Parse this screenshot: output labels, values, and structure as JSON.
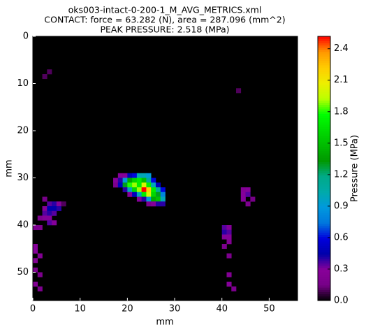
{
  "chart_data": {
    "type": "heatmap",
    "title": "oks003-intact-0-200-1_M_AVG_METRICS.xml",
    "subtitle": "CONTACT: force = 63.282 (N), area = 287.096 (mm^2)",
    "annotation": "PEAK PRESSURE: 2.518 (MPa)",
    "x_label": "mm",
    "y_label": "mm",
    "xlim": [
      0,
      56
    ],
    "ylim": [
      0,
      56
    ],
    "invert_y": true,
    "xticks": [
      0,
      10,
      20,
      30,
      40,
      50
    ],
    "yticks": [
      0,
      10,
      20,
      30,
      40,
      50
    ],
    "colormap": "nipy_spectral",
    "background": "#000000",
    "colorbar_label": "Pressure (MPa)",
    "clim": [
      0,
      2.518
    ],
    "colorbar_ticks": [
      {
        "value": 0,
        "label": "0.0"
      },
      {
        "value": 0.3,
        "label": "0.3"
      },
      {
        "value": 0.6,
        "label": "0.6"
      },
      {
        "value": 0.9,
        "label": "0.9"
      },
      {
        "value": 1.2,
        "label": "1.2"
      },
      {
        "value": 1.5,
        "label": "1.5"
      },
      {
        "value": 1.8,
        "label": "1.8"
      },
      {
        "value": 2.1,
        "label": "2.1"
      },
      {
        "value": 2.4,
        "label": "2.4"
      }
    ],
    "cells": {
      "x": [
        18,
        19,
        20,
        21,
        22,
        23,
        24,
        17,
        18,
        19,
        20,
        21,
        22,
        23,
        24,
        25,
        17,
        18,
        19,
        20,
        21,
        22,
        23,
        24,
        25,
        26,
        19,
        20,
        21,
        22,
        23,
        24,
        25,
        26,
        27,
        20,
        21,
        22,
        23,
        24,
        25,
        26,
        27,
        22,
        23,
        24,
        25,
        26,
        27,
        24,
        25,
        26,
        27,
        3,
        4,
        5,
        2,
        3,
        4,
        5,
        2,
        3,
        4,
        1,
        2,
        3,
        3,
        4,
        0,
        1,
        0,
        0,
        1,
        0,
        0,
        1,
        0,
        1,
        6,
        2,
        40,
        41,
        40,
        41,
        40,
        41,
        41,
        40,
        41,
        41,
        41,
        42,
        44,
        45,
        44,
        45,
        44,
        45,
        46,
        43,
        3,
        2
      ],
      "y": [
        29,
        29,
        29,
        29,
        29,
        29,
        29,
        30,
        30,
        30,
        30,
        30,
        30,
        30,
        30,
        30,
        31,
        31,
        31,
        31,
        31,
        31,
        31,
        31,
        31,
        31,
        32,
        32,
        32,
        32,
        32,
        32,
        32,
        32,
        32,
        33,
        33,
        33,
        33,
        33,
        33,
        33,
        33,
        34,
        34,
        34,
        34,
        34,
        34,
        35,
        35,
        35,
        35,
        35,
        35,
        35,
        36,
        36,
        36,
        36,
        37,
        37,
        37,
        38,
        38,
        38,
        39,
        39,
        40,
        40,
        44,
        45,
        46,
        47,
        49,
        50,
        52,
        53,
        35,
        34,
        40,
        40,
        41,
        41,
        42,
        42,
        43,
        44,
        46,
        50,
        52,
        53,
        32,
        32,
        33,
        33,
        34,
        35,
        34,
        11,
        7,
        8
      ],
      "values": [
        0.3,
        0.3,
        0.5,
        0.6,
        1.0,
        1.0,
        0.9,
        0.3,
        0.4,
        0.9,
        1.4,
        1.6,
        1.7,
        1.5,
        1.1,
        0.6,
        0.2,
        0.5,
        1.3,
        1.8,
        1.9,
        1.7,
        2.0,
        1.7,
        1.0,
        0.5,
        0.4,
        1.0,
        1.6,
        1.9,
        2.518,
        2.2,
        1.7,
        1.1,
        0.6,
        0.3,
        0.5,
        1.0,
        1.7,
        2.0,
        1.6,
        1.3,
        0.8,
        0.3,
        0.4,
        0.9,
        1.4,
        1.5,
        1.0,
        0.2,
        0.3,
        0.4,
        0.4,
        0.35,
        0.4,
        0.3,
        0.3,
        0.45,
        0.45,
        0.4,
        0.35,
        0.4,
        0.35,
        0.2,
        0.3,
        0.3,
        0.35,
        0.3,
        0.2,
        0.2,
        0.3,
        0.3,
        0.25,
        0.25,
        0.2,
        0.2,
        0.25,
        0.2,
        0.1,
        0.15,
        0.35,
        0.3,
        0.4,
        0.35,
        0.3,
        0.3,
        0.25,
        0.2,
        0.2,
        0.25,
        0.3,
        0.2,
        0.25,
        0.3,
        0.3,
        0.35,
        0.3,
        0.2,
        0.15,
        0.1,
        0.1,
        0.1
      ]
    }
  }
}
